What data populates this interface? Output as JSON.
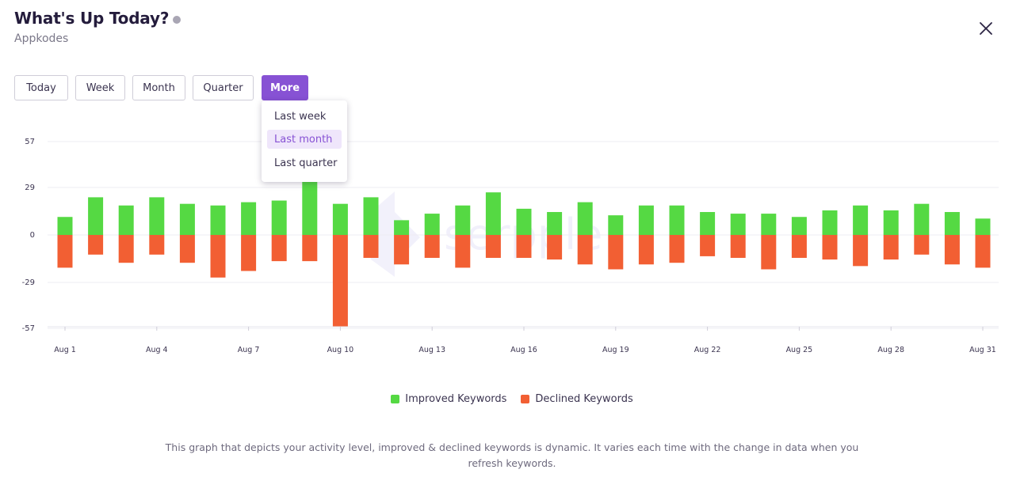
{
  "header": {
    "title": "What's Up Today?",
    "subtitle": "Appkodes"
  },
  "range_buttons": [
    {
      "label": "Today",
      "active": false
    },
    {
      "label": "Week",
      "active": false
    },
    {
      "label": "Month",
      "active": false
    },
    {
      "label": "Quarter",
      "active": false
    },
    {
      "label": "More",
      "active": true
    }
  ],
  "more_menu": {
    "items": [
      {
        "label": "Last week",
        "selected": false
      },
      {
        "label": "Last month",
        "selected": true
      },
      {
        "label": "Last quarter",
        "selected": false
      }
    ]
  },
  "colors": {
    "accent": "#8752d4",
    "improved": "#55d943",
    "declined": "#f25f33"
  },
  "chart_data": {
    "type": "bar",
    "title": "",
    "xlabel": "",
    "ylabel": "",
    "ylim": [
      -57,
      57
    ],
    "y_ticks": [
      57,
      29,
      0,
      -29,
      -57
    ],
    "grid": true,
    "legend_position": "bottom",
    "watermark": "serpple",
    "categories": [
      "Aug 1",
      "Aug 2",
      "Aug 3",
      "Aug 4",
      "Aug 5",
      "Aug 6",
      "Aug 7",
      "Aug 8",
      "Aug 9",
      "Aug 10",
      "Aug 11",
      "Aug 12",
      "Aug 13",
      "Aug 14",
      "Aug 15",
      "Aug 16",
      "Aug 17",
      "Aug 18",
      "Aug 19",
      "Aug 20",
      "Aug 21",
      "Aug 22",
      "Aug 23",
      "Aug 24",
      "Aug 25",
      "Aug 26",
      "Aug 27",
      "Aug 28",
      "Aug 29",
      "Aug 30",
      "Aug 31"
    ],
    "x_tick_labels": [
      "Aug 1",
      "Aug 4",
      "Aug 7",
      "Aug 10",
      "Aug 13",
      "Aug 16",
      "Aug 19",
      "Aug 22",
      "Aug 25",
      "Aug 28",
      "Aug 31"
    ],
    "series": [
      {
        "name": "Improved Keywords",
        "values": [
          11,
          23,
          18,
          23,
          19,
          18,
          20,
          21,
          33,
          19,
          23,
          9,
          13,
          18,
          26,
          16,
          14,
          20,
          12,
          18,
          18,
          14,
          13,
          13,
          11,
          15,
          18,
          15,
          19,
          14,
          10
        ]
      },
      {
        "name": "Declined Keywords",
        "values": [
          -20,
          -12,
          -17,
          -12,
          -17,
          -26,
          -22,
          -16,
          -16,
          -56,
          -14,
          -18,
          -14,
          -20,
          -14,
          -14,
          -15,
          -18,
          -21,
          -18,
          -17,
          -13,
          -14,
          -21,
          -14,
          -15,
          -19,
          -15,
          -12,
          -18,
          -20
        ]
      }
    ]
  },
  "footer": {
    "note": "This graph that depicts your activity level, improved & declined keywords is dynamic. It varies each time with the change in data when you refresh keywords."
  }
}
